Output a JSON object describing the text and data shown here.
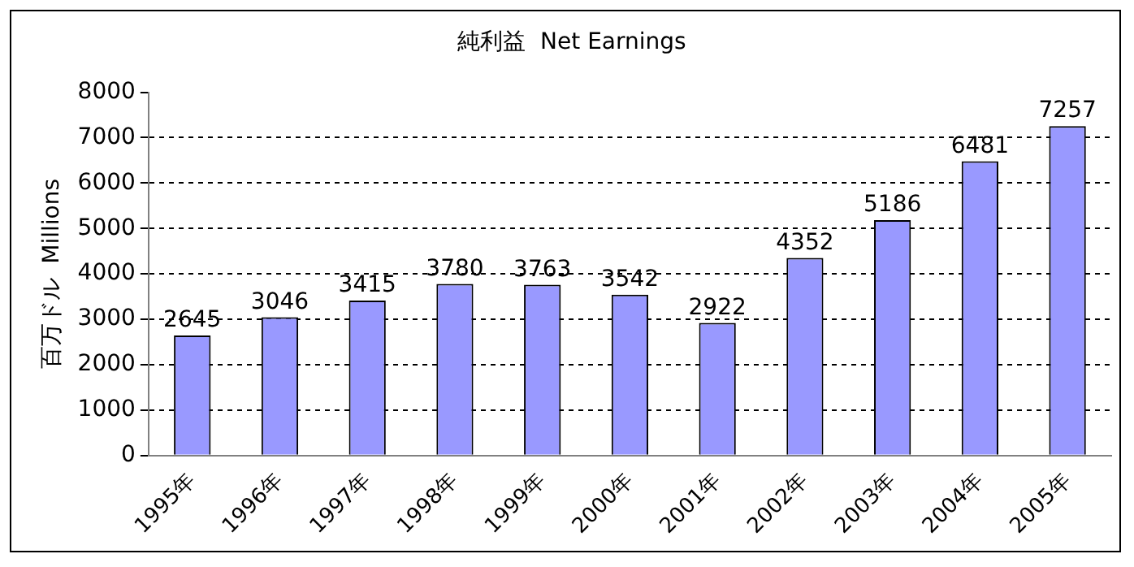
{
  "chart_data": {
    "type": "bar",
    "title": "純利益  Net Earnings",
    "ylabel": "百万ドル  Millions",
    "categories": [
      "1995年",
      "1996年",
      "1997年",
      "1998年",
      "1999年",
      "2000年",
      "2001年",
      "2002年",
      "2003年",
      "2004年",
      "2005年"
    ],
    "values": [
      2645,
      3046,
      3415,
      3780,
      3763,
      3542,
      2922,
      4352,
      5186,
      6481,
      7257
    ],
    "color": "#9999ff",
    "ylim": [
      0,
      8000
    ],
    "yticks": [
      0,
      1000,
      2000,
      3000,
      4000,
      5000,
      6000,
      7000,
      8000
    ],
    "grid": "y",
    "line_style": "dashed",
    "data_labels": true,
    "legend": false
  }
}
